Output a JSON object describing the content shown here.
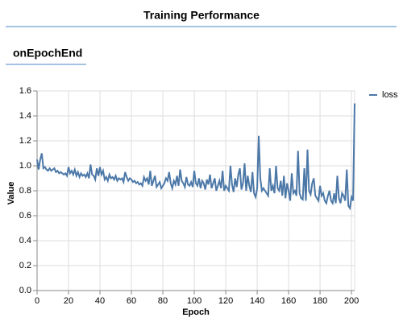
{
  "header": {
    "title": "Training Performance"
  },
  "section": {
    "title": "onEpochEnd"
  },
  "chart_data": {
    "type": "line",
    "x_label": "Epoch",
    "y_label": "Value",
    "x": [
      0,
      1,
      2,
      3,
      4,
      5,
      6,
      7,
      8,
      9,
      10,
      11,
      12,
      13,
      14,
      15,
      16,
      17,
      18,
      19,
      20,
      21,
      22,
      23,
      24,
      25,
      26,
      27,
      28,
      29,
      30,
      31,
      32,
      33,
      34,
      35,
      36,
      37,
      38,
      39,
      40,
      41,
      42,
      43,
      44,
      45,
      46,
      47,
      48,
      49,
      50,
      51,
      52,
      53,
      54,
      55,
      56,
      57,
      58,
      59,
      60,
      61,
      62,
      63,
      64,
      65,
      66,
      67,
      68,
      69,
      70,
      71,
      72,
      73,
      74,
      75,
      76,
      77,
      78,
      79,
      80,
      81,
      82,
      83,
      84,
      85,
      86,
      87,
      88,
      89,
      90,
      91,
      92,
      93,
      94,
      95,
      96,
      97,
      98,
      99,
      100,
      101,
      102,
      103,
      104,
      105,
      106,
      107,
      108,
      109,
      110,
      111,
      112,
      113,
      114,
      115,
      116,
      117,
      118,
      119,
      120,
      121,
      122,
      123,
      124,
      125,
      126,
      127,
      128,
      129,
      130,
      131,
      132,
      133,
      134,
      135,
      136,
      137,
      138,
      139,
      140,
      141,
      142,
      143,
      144,
      145,
      146,
      147,
      148,
      149,
      150,
      151,
      152,
      153,
      154,
      155,
      156,
      157,
      158,
      159,
      160,
      161,
      162,
      163,
      164,
      165,
      166,
      167,
      168,
      169,
      170,
      171,
      172,
      173,
      174,
      175,
      176,
      177,
      178,
      179,
      180,
      181,
      182,
      183,
      184,
      185,
      186,
      187,
      188,
      189,
      190,
      191,
      192,
      193,
      194,
      195,
      196,
      197,
      198,
      199,
      200,
      201,
      202
    ],
    "series": [
      {
        "name": "loss",
        "color": "#4c78a8",
        "values": [
          1.05,
          0.97,
          1.05,
          1.1,
          0.98,
          0.99,
          0.97,
          0.96,
          0.98,
          0.96,
          0.97,
          0.98,
          0.95,
          0.96,
          0.94,
          0.95,
          0.94,
          0.93,
          0.94,
          0.92,
          0.99,
          0.94,
          0.96,
          0.93,
          0.97,
          0.92,
          0.95,
          0.91,
          0.94,
          0.92,
          0.93,
          0.91,
          0.94,
          0.9,
          1.01,
          0.93,
          0.92,
          0.89,
          0.98,
          0.92,
          0.99,
          0.93,
          0.96,
          0.89,
          0.91,
          0.88,
          0.93,
          0.9,
          0.91,
          0.89,
          0.92,
          0.88,
          0.9,
          0.89,
          0.9,
          0.87,
          0.95,
          0.91,
          0.88,
          0.9,
          0.89,
          0.87,
          0.88,
          0.86,
          0.87,
          0.85,
          0.86,
          0.84,
          0.91,
          0.88,
          0.9,
          0.85,
          0.96,
          0.84,
          0.88,
          0.92,
          0.83,
          0.85,
          0.87,
          0.82,
          0.84,
          0.86,
          0.9,
          0.88,
          0.95,
          0.86,
          0.82,
          0.88,
          0.85,
          0.92,
          0.84,
          0.97,
          0.88,
          0.86,
          0.83,
          0.91,
          0.85,
          0.84,
          0.87,
          0.83,
          0.96,
          0.86,
          0.84,
          0.9,
          0.82,
          0.88,
          0.86,
          0.81,
          0.89,
          0.85,
          0.93,
          0.82,
          0.86,
          0.9,
          0.8,
          0.84,
          0.88,
          0.82,
          0.96,
          0.8,
          0.84,
          0.82,
          0.8,
          1.0,
          0.85,
          0.79,
          0.9,
          0.83,
          0.93,
          0.98,
          0.81,
          0.86,
          1.02,
          0.8,
          0.92,
          0.84,
          0.79,
          0.95,
          0.78,
          0.75,
          0.82,
          1.24,
          0.9,
          0.8,
          0.82,
          0.8,
          0.78,
          0.76,
          0.98,
          0.8,
          0.84,
          0.78,
          1.0,
          0.82,
          0.8,
          0.88,
          0.76,
          0.92,
          0.74,
          0.86,
          0.8,
          0.72,
          0.94,
          0.78,
          0.8,
          0.76,
          1.12,
          0.78,
          0.74,
          0.73,
          0.98,
          0.72,
          1.13,
          0.8,
          0.77,
          0.86,
          0.9,
          0.76,
          0.74,
          0.72,
          0.84,
          0.76,
          0.78,
          0.72,
          0.7,
          0.76,
          0.8,
          0.72,
          0.7,
          0.78,
          0.7,
          0.92,
          0.74,
          0.7,
          0.78,
          0.76,
          0.72,
          0.97,
          0.68,
          0.66,
          0.75,
          0.72,
          1.5
        ]
      }
    ],
    "xlim": [
      0,
      202
    ],
    "ylim": [
      0,
      1.6
    ],
    "xticks": [
      0,
      20,
      40,
      60,
      80,
      100,
      120,
      140,
      160,
      180,
      200
    ],
    "yticks": [
      {
        "value": 0,
        "label": "0.0"
      },
      0.2,
      0.4,
      0.6,
      0.8,
      {
        "value": 1,
        "label": "1.0"
      },
      1.2,
      1.4,
      1.6
    ],
    "grid": true,
    "legend": "right"
  }
}
